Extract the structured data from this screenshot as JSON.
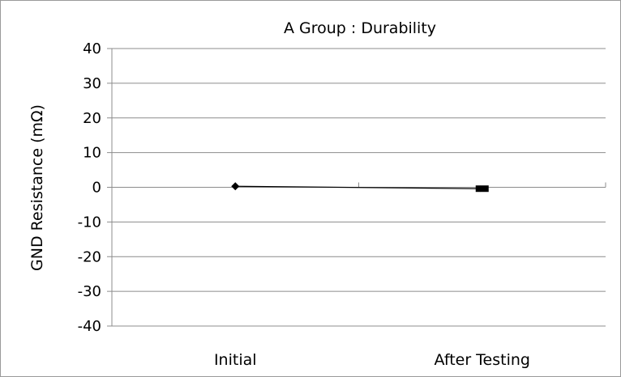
{
  "chart_data": {
    "type": "line",
    "title": "A Group : Durability",
    "xlabel": "",
    "ylabel": "GND Resistance (mΩ)",
    "ylim": [
      -40,
      40
    ],
    "yticks": [
      40,
      30,
      20,
      10,
      0,
      -10,
      -20,
      -30,
      -40
    ],
    "categories": [
      "Initial",
      "After Testing"
    ],
    "series": [
      {
        "values": [
          0.3,
          -0.4
        ],
        "color": "#000000"
      }
    ],
    "grid": true,
    "legend": "none"
  }
}
